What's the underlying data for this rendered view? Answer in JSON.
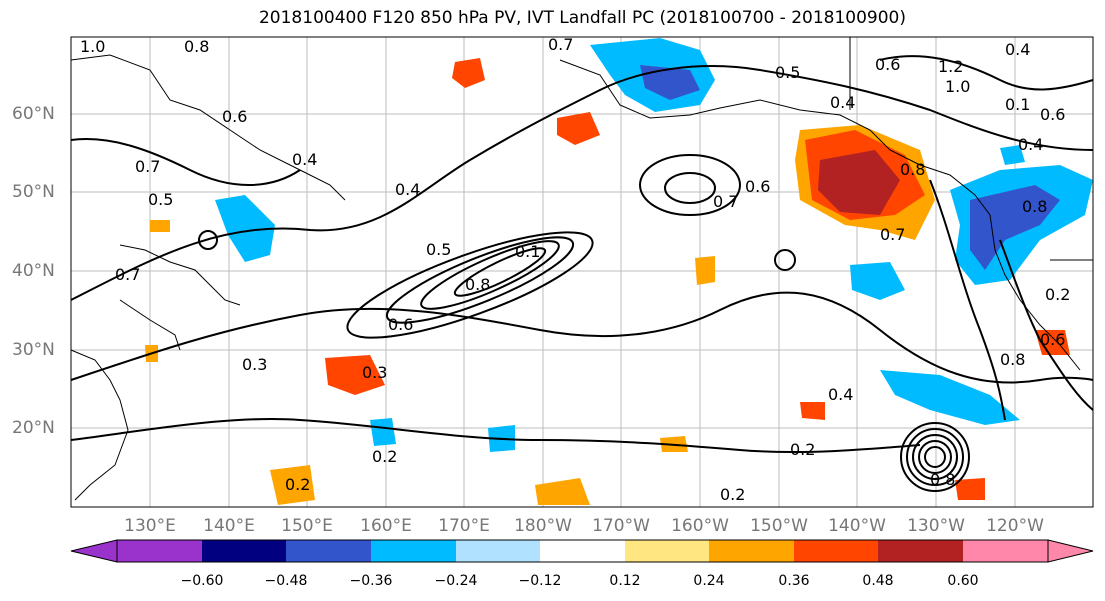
{
  "title": "2018100400 F120 850 hPa PV, IVT Landfall PC (2018100700 - 2018100900)",
  "lat_labels": [
    "60°N",
    "50°N",
    "40°N",
    "30°N",
    "20°N"
  ],
  "lon_labels": [
    "130°E",
    "140°E",
    "150°E",
    "160°E",
    "170°E",
    "180°W",
    "170°W",
    "160°W",
    "150°W",
    "140°W",
    "130°W",
    "120°W"
  ],
  "colorbar": {
    "ticks": [
      "−0.60",
      "−0.48",
      "−0.36",
      "−0.24",
      "−0.12",
      "0.12",
      "0.24",
      "0.36",
      "0.48",
      "0.60"
    ],
    "colors": [
      "#9933cc",
      "#000080",
      "#3355cc",
      "#00bbff",
      "#b0e2ff",
      "#ffffff",
      "#ffe680",
      "#ffa500",
      "#ff4500",
      "#b22222",
      "#ff88aa"
    ]
  },
  "contour_labels": [
    "1.0",
    "0.8",
    "0.7",
    "0.5",
    "0.4",
    "0.6",
    "1.2",
    "1.0",
    "0.1",
    "0.6",
    "0.4",
    "0.7",
    "0.5",
    "0.6",
    "0.4",
    "0.5",
    "0.1",
    "0.8",
    "0.7",
    "0.6",
    "0.7",
    "0.4",
    "0.8",
    "0.8",
    "0.6",
    "0.3",
    "0.3",
    "0.2",
    "0.2",
    "0.4",
    "0.2",
    "0.2",
    "0.8",
    "0.6",
    "0.2",
    "0.4",
    "0.7",
    "0.8"
  ]
}
